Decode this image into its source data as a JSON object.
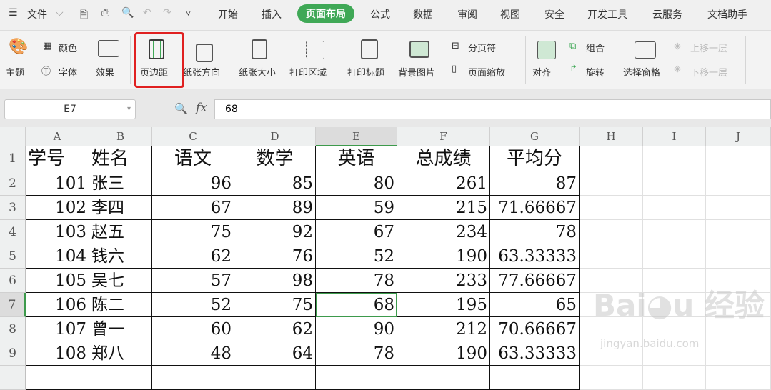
{
  "menubar": {
    "file": "文件",
    "tabs": [
      "开始",
      "插入",
      "页面布局",
      "公式",
      "数据",
      "审阅",
      "视图",
      "安全",
      "开发工具",
      "云服务",
      "文档助手"
    ],
    "active": "页面布局"
  },
  "ribbon": {
    "theme": "主题",
    "color": "颜色",
    "font": "字体",
    "effect": "效果",
    "margins": "页边距",
    "orientation": "纸张方向",
    "size": "纸张大小",
    "print_area": "打印区域",
    "print_titles": "打印标题",
    "background": "背景图片",
    "page_break": "分页符",
    "page_zoom": "页面缩放",
    "align": "对齐",
    "group": "组合",
    "rotate": "旋转",
    "selection_pane": "选择窗格",
    "bring_forward": "上移一层",
    "send_backward": "下移一层"
  },
  "formula": {
    "name_box": "E7",
    "fx": "fx",
    "value": "68"
  },
  "accent": "#3fa856",
  "columns": [
    "A",
    "B",
    "C",
    "D",
    "E",
    "F",
    "G",
    "H",
    "I",
    "J"
  ],
  "rows": [
    [
      "学号",
      "姓名",
      "语文",
      "数学",
      "英语",
      "总成绩",
      "平均分"
    ],
    [
      "101",
      "张三",
      "96",
      "85",
      "80",
      "261",
      "87"
    ],
    [
      "102",
      "李四",
      "67",
      "89",
      "59",
      "215",
      "71.66667"
    ],
    [
      "103",
      "赵五",
      "75",
      "92",
      "67",
      "234",
      "78"
    ],
    [
      "104",
      "钱六",
      "62",
      "76",
      "52",
      "190",
      "63.33333"
    ],
    [
      "105",
      "吴七",
      "57",
      "98",
      "78",
      "233",
      "77.66667"
    ],
    [
      "106",
      "陈二",
      "52",
      "75",
      "68",
      "195",
      "65"
    ],
    [
      "107",
      "曾一",
      "60",
      "62",
      "90",
      "212",
      "70.66667"
    ],
    [
      "108",
      "郑八",
      "48",
      "64",
      "78",
      "190",
      "63.33333"
    ]
  ],
  "watermark": {
    "brand": "Bai経验",
    "url": "jingyan.baidu.com"
  }
}
